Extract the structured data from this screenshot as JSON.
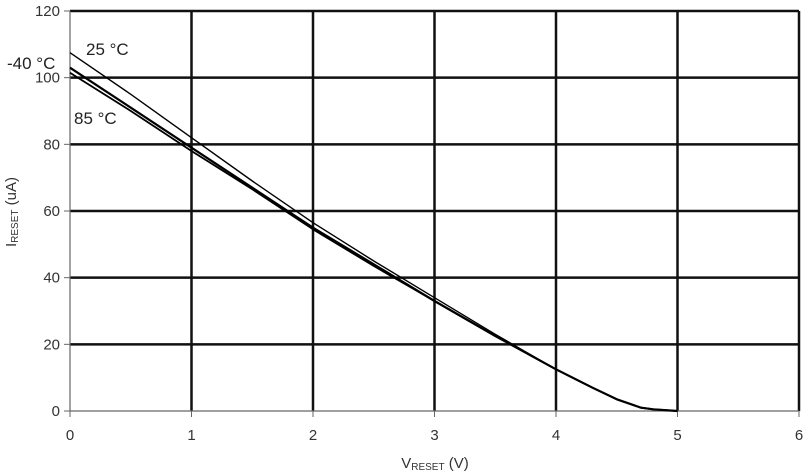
{
  "chart_data": {
    "type": "line",
    "title": "",
    "xlabel": {
      "main": "V",
      "sub": "RESET",
      "unit": " (V)"
    },
    "ylabel": {
      "main": "I",
      "sub": "RESET",
      "unit": " (uA)"
    },
    "xlim": [
      0,
      6
    ],
    "ylim": [
      0,
      120
    ],
    "xticks": [
      "0",
      "1",
      "2",
      "3",
      "4",
      "5",
      "6"
    ],
    "yticks": [
      "0",
      "20",
      "40",
      "60",
      "80",
      "100",
      "120"
    ],
    "grid": true,
    "series": [
      {
        "name": "25 °C",
        "color": "#000000",
        "x": [
          0,
          0.5,
          1,
          1.5,
          2,
          2.5,
          3,
          3.5,
          4,
          4.3,
          4.5,
          4.7,
          4.8,
          5
        ],
        "y": [
          107.5,
          95,
          82,
          69,
          56.5,
          45,
          34,
          23,
          12.5,
          7,
          3.5,
          1,
          0.5,
          0
        ]
      },
      {
        "name": "-40 °C",
        "color": "#000000",
        "x": [
          0,
          0.5,
          1,
          1.5,
          2,
          2.5,
          3,
          3.5,
          4,
          4.3,
          4.5,
          4.7,
          4.8,
          5
        ],
        "y": [
          103,
          91,
          79,
          67,
          55,
          44,
          33,
          22.5,
          12.5,
          7,
          3.5,
          1,
          0.5,
          0
        ]
      },
      {
        "name": "85 °C",
        "color": "#000000",
        "x": [
          0,
          0.5,
          1,
          1.5,
          2,
          2.5,
          3,
          3.5,
          4,
          4.3,
          4.5,
          4.7,
          4.8,
          5
        ],
        "y": [
          101.5,
          90,
          78,
          66.5,
          54.5,
          43.5,
          33,
          22.5,
          12.5,
          7,
          3.5,
          1,
          0.5,
          0
        ]
      }
    ],
    "annotations": [
      "25 °C",
      "-40 °C",
      "85 °C"
    ]
  }
}
